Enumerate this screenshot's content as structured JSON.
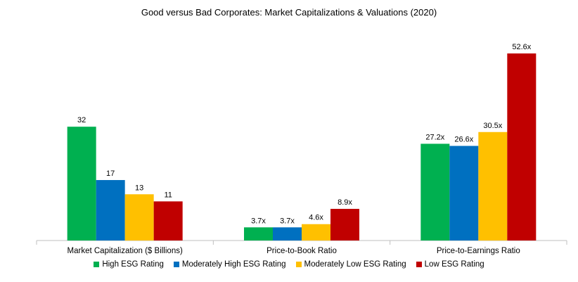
{
  "chart_data": {
    "type": "bar",
    "title": "Good versus Bad Corporates: Market Capitalizations & Valuations (2020)",
    "xlabel": "",
    "ylabel": "",
    "grid": false,
    "legend_position": "bottom",
    "categories": [
      "Market Capitalization ($ Billions)",
      "Price-to-Book Ratio",
      "Price-to-Earnings Ratio"
    ],
    "ylim": [
      0,
      55
    ],
    "series": [
      {
        "name": "High ESG Rating",
        "color": "#00b050",
        "values": [
          32,
          3.7,
          27.2
        ],
        "labels": [
          "32",
          "3.7x",
          "27.2x"
        ]
      },
      {
        "name": "Moderately High ESG Rating",
        "color": "#0070c0",
        "values": [
          17,
          3.7,
          26.6
        ],
        "labels": [
          "17",
          "3.7x",
          "26.6x"
        ]
      },
      {
        "name": "Moderately Low ESG Rating",
        "color": "#ffc000",
        "values": [
          13,
          4.6,
          30.5
        ],
        "labels": [
          "13",
          "4.6x",
          "30.5x"
        ]
      },
      {
        "name": "Low ESG Rating",
        "color": "#c00000",
        "values": [
          11,
          8.9,
          52.6
        ],
        "labels": [
          "11",
          "8.9x",
          "52.6x"
        ]
      }
    ]
  }
}
